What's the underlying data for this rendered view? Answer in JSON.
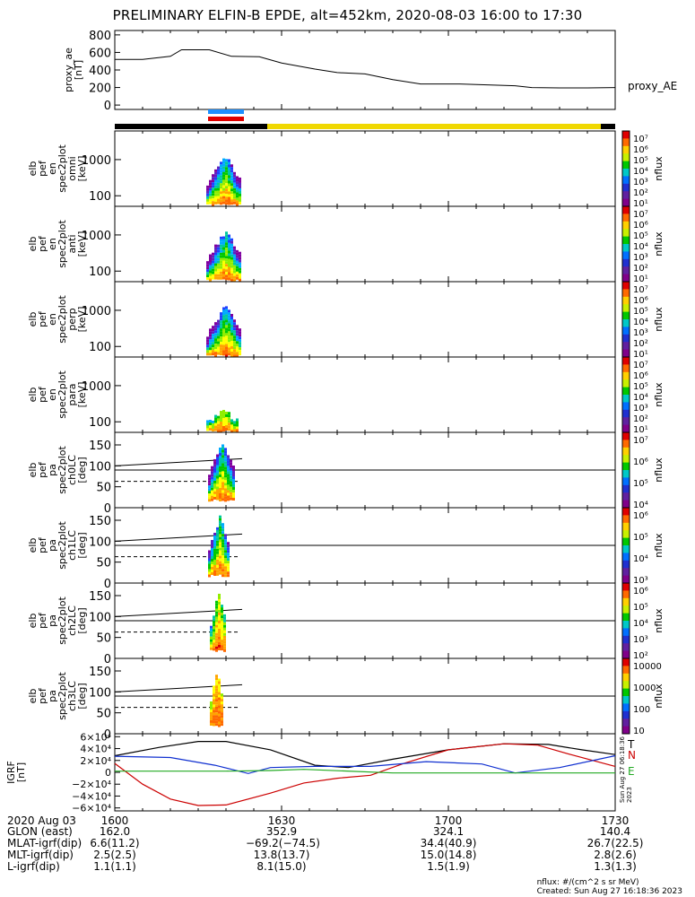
{
  "title": "PRELIMINARY ELFIN-B EPDE, alt=452km, 2020-08-03 16:00 to 17:30",
  "chart_data": [
    {
      "type": "line",
      "name": "proxy_ae",
      "ylabel": [
        "proxy_ae",
        "[nT]"
      ],
      "legend": "proxy_AE",
      "yticks": [
        "800",
        "600",
        "400",
        "200",
        "0"
      ],
      "ylim": [
        -50,
        850
      ],
      "x": [
        0,
        5,
        10,
        12,
        17,
        21,
        26,
        30,
        36,
        40,
        45,
        50,
        55,
        58,
        62,
        67,
        72,
        75,
        80,
        85,
        90
      ],
      "values": [
        520,
        520,
        555,
        630,
        630,
        555,
        550,
        480,
        410,
        370,
        355,
        290,
        240,
        240,
        240,
        230,
        220,
        200,
        195,
        195,
        200
      ]
    },
    {
      "type": "heatmap",
      "name": "omni",
      "ylabel": [
        "elb",
        "pef",
        "en",
        "spec2plot",
        "omni",
        "[keV]"
      ],
      "yticks": [
        "1000",
        "100"
      ],
      "colorbar_label": "nflux",
      "colorbar_ticks": [
        "10⁷",
        "10⁶",
        "10⁵",
        "10⁴",
        "10³",
        "10²",
        "10¹"
      ]
    },
    {
      "type": "heatmap",
      "name": "anti",
      "ylabel": [
        "elb",
        "pef",
        "en",
        "spec2plot",
        "anti",
        "[keV]"
      ],
      "yticks": [
        "1000",
        "100"
      ],
      "colorbar_label": "nflux",
      "colorbar_ticks": [
        "10⁷",
        "10⁶",
        "10⁵",
        "10⁴",
        "10³",
        "10²",
        "10¹"
      ]
    },
    {
      "type": "heatmap",
      "name": "perp",
      "ylabel": [
        "elb",
        "pef",
        "en",
        "spec2plot",
        "perp",
        "[keV]"
      ],
      "yticks": [
        "1000",
        "100"
      ],
      "colorbar_label": "nflux",
      "colorbar_ticks": [
        "10⁷",
        "10⁶",
        "10⁵",
        "10⁴",
        "10³",
        "10²",
        "10¹"
      ]
    },
    {
      "type": "heatmap",
      "name": "para",
      "ylabel": [
        "elb",
        "pef",
        "en",
        "spec2plot",
        "para",
        "[keV]"
      ],
      "yticks": [
        "1000",
        "100"
      ],
      "colorbar_label": "nflux",
      "colorbar_ticks": [
        "10⁷",
        "10⁶",
        "10⁵",
        "10⁴",
        "10³",
        "10²",
        "10¹"
      ]
    },
    {
      "type": "heatmap",
      "name": "ch0LC",
      "ylabel": [
        "elb",
        "pef",
        "pa",
        "spec2plot",
        "ch0LC",
        "[deg]"
      ],
      "yticks": [
        "150",
        "100",
        "50",
        "0"
      ],
      "ylim": [
        0,
        180
      ],
      "colorbar_label": "nflux",
      "colorbar_ticks": [
        "10⁷",
        "10⁶",
        "10⁵",
        "10⁴"
      ]
    },
    {
      "type": "heatmap",
      "name": "ch1LC",
      "ylabel": [
        "elb",
        "pef",
        "pa",
        "spec2plot",
        "ch1LC",
        "[deg]"
      ],
      "yticks": [
        "150",
        "100",
        "50",
        "0"
      ],
      "ylim": [
        0,
        180
      ],
      "colorbar_label": "nflux",
      "colorbar_ticks": [
        "10⁶",
        "10⁵",
        "10⁴",
        "10³"
      ]
    },
    {
      "type": "heatmap",
      "name": "ch2LC",
      "ylabel": [
        "elb",
        "pef",
        "pa",
        "spec2plot",
        "ch2LC",
        "[deg]"
      ],
      "yticks": [
        "150",
        "100",
        "50",
        "0"
      ],
      "ylim": [
        0,
        180
      ],
      "colorbar_label": "nflux",
      "colorbar_ticks": [
        "10⁶",
        "10⁵",
        "10⁴",
        "10³",
        "10²"
      ]
    },
    {
      "type": "heatmap",
      "name": "ch3LC",
      "ylabel": [
        "elb",
        "pef",
        "pa",
        "spec2plot",
        "ch3LC",
        "[deg]"
      ],
      "yticks": [
        "150",
        "100",
        "50",
        "0"
      ],
      "ylim": [
        0,
        180
      ],
      "colorbar_label": "nflux",
      "colorbar_ticks": [
        "10000",
        "1000",
        "100",
        "10"
      ]
    },
    {
      "type": "line",
      "name": "IGRF",
      "ylabel": [
        "IGRF",
        "[nT]"
      ],
      "yticks": [
        "6×10⁴",
        "4×10⁴",
        "2×10⁴",
        "0",
        "−2×10⁴",
        "−4×10⁴",
        "−6×10⁴"
      ],
      "ylim": [
        -65000,
        65000
      ],
      "legend": [
        "T",
        "N",
        "E"
      ],
      "series_colors": {
        "T": "#000000",
        "N": "#cc0000",
        "E": "#22aa22"
      }
    }
  ],
  "footer": {
    "labels": [
      "2020 Aug 03",
      "GLON (east)",
      "MLAT-igrf(dip)",
      "MLT-igrf(dip)",
      "L-igrf(dip)"
    ],
    "columns": [
      {
        "time": "1600",
        "values": [
          "162.0",
          "6.6(11.2)",
          "2.5(2.5)",
          "1.1(1.1)"
        ]
      },
      {
        "time": "1630",
        "values": [
          "352.9",
          "−69.2(−74.5)",
          "13.8(13.7)",
          "8.1(15.0)"
        ]
      },
      {
        "time": "1700",
        "values": [
          "324.1",
          "34.4(40.9)",
          "15.0(14.8)",
          "1.5(1.9)"
        ]
      },
      {
        "time": "1730",
        "values": [
          "140.4",
          "26.7(22.5)",
          "2.8(2.6)",
          "1.3(1.3)"
        ]
      }
    ]
  },
  "credit": [
    "nflux: #/(cm^2 s sr MeV)",
    "Created: Sun Aug 27 16:18:36 2023"
  ],
  "side_stamp": "Sun Aug 27 06:18:36 2023"
}
